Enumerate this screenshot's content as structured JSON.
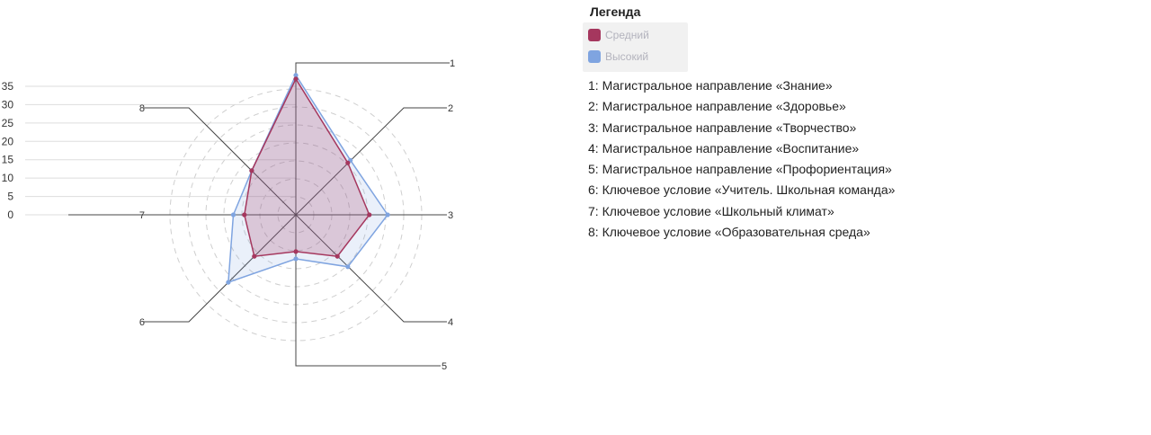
{
  "legend": {
    "title": "Легенда",
    "items": [
      {
        "label": "Средний",
        "color": "#a5375e"
      },
      {
        "label": "Высокий",
        "color": "#7fa4e0"
      }
    ]
  },
  "axis_descriptions": [
    {
      "num": "1",
      "text": "Магистральное направление «Знание»"
    },
    {
      "num": "2",
      "text": "Магистральное направление «Здоровье»"
    },
    {
      "num": "3",
      "text": "Магистральное направление «Творчество»"
    },
    {
      "num": "4",
      "text": "Магистральное направление «Воспитание»"
    },
    {
      "num": "5",
      "text": "Магистральное направление «Профориентация»"
    },
    {
      "num": "6",
      "text": "Ключевое условие «Учитель. Школьная команда»"
    },
    {
      "num": "7",
      "text": "Ключевое условие «Школьный климат»"
    },
    {
      "num": "8",
      "text": "Ключевое условие «Образовательная среда»"
    }
  ],
  "chart_data": {
    "type": "radar",
    "categories": [
      "1",
      "2",
      "3",
      "4",
      "5",
      "6",
      "7",
      "8"
    ],
    "series": [
      {
        "name": "Средний",
        "color": "#a5375e",
        "values": [
          37,
          20,
          20,
          16,
          10,
          16,
          14,
          17
        ]
      },
      {
        "name": "Высокий",
        "color": "#7fa4e0",
        "values": [
          38,
          21,
          25,
          20,
          12,
          26,
          17,
          17
        ]
      }
    ],
    "scale_ticks": [
      0,
      5,
      10,
      15,
      20,
      25,
      30,
      35
    ],
    "rmax": 35,
    "grid": true,
    "legend_position": "right"
  }
}
